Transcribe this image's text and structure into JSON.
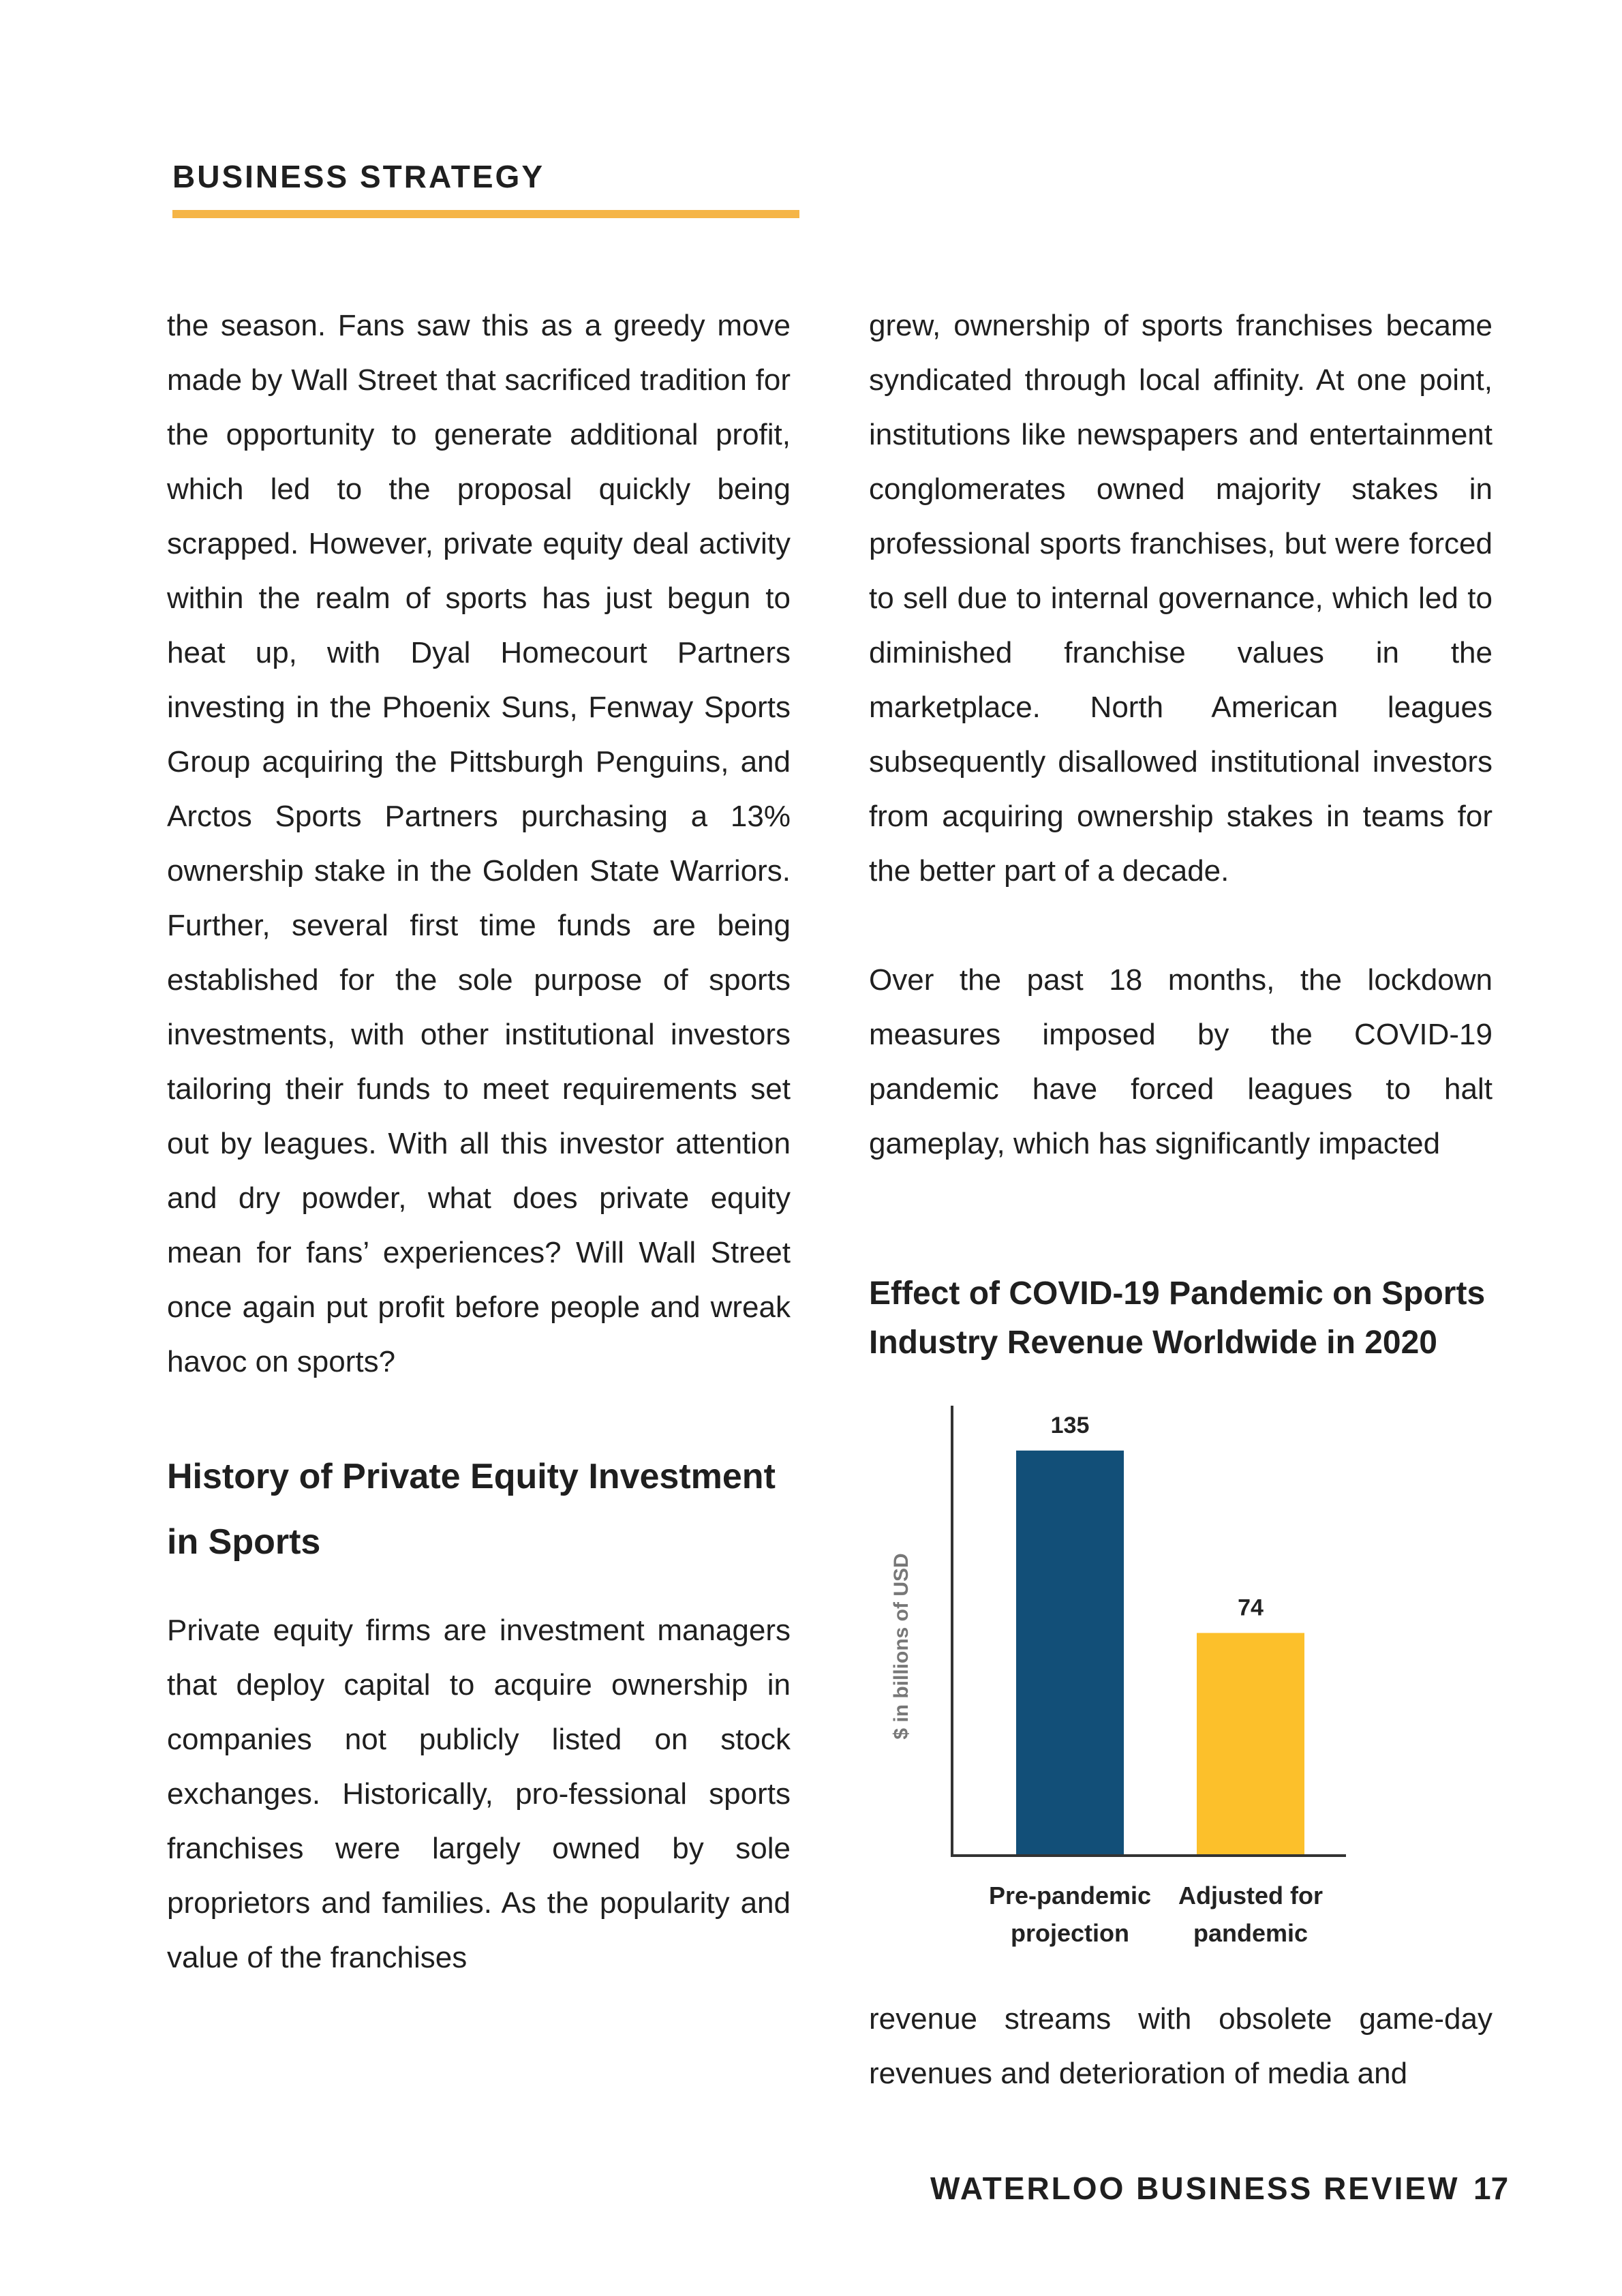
{
  "header": {
    "section": "BUSINESS STRATEGY"
  },
  "left_column": {
    "para1": "the season. Fans saw this as a greedy move made by Wall Street that sacrificed tradition for the opportunity to generate additional profit, which led to the proposal quickly being scrapped. However, private equity deal activity within the realm of sports has just begun to heat up, with Dyal Homecourt Partners investing in the Phoenix Suns, Fenway Sports Group acquiring the Pittsburgh Penguins, and Arctos Sports Partners purchasing a 13% ownership stake in the Golden State Warriors. Further, several first time funds are being established for the sole purpose of sports investments, with other institutional investors tailoring their funds to meet requirements set out by leagues. With all this investor attention and dry powder, what does private equity mean for fans’ experiences? Will Wall Street once again put profit before people and wreak havoc on sports?",
    "heading": "History of Private Equity Investment in Sports",
    "para2": "Private equity firms are investment managers that deploy capital to acquire ownership in companies not publicly listed on stock exchanges. Historically, pro-fessional sports franchises were largely owned by sole proprietors and families. As the popularity and value of the franchises"
  },
  "right_column": {
    "para1": "grew, ownership of sports franchises became syndicated through local affinity. At one point, institutions like newspapers and entertainment conglomerates owned majority stakes in professional sports franchises, but were forced to sell due to internal governance, which led to diminished franchise values in the marketplace. North American leagues subsequently disallowed institutional investors from acquiring ownership stakes in teams for the better part of a decade.",
    "para2": "Over the past 18 months, the lockdown measures imposed by the COVID-19 pandemic have forced leagues to halt gameplay, which has significantly impacted",
    "para3": "revenue streams with obsolete game-day revenues and deterioration of media and"
  },
  "chart_data": {
    "type": "bar",
    "title": "Effect of COVID-19 Pandemic on Sports Industry Revenue Worldwide in 2020",
    "ylabel": "$ in billions of USD",
    "xlabel": "",
    "categories": [
      "Pre-pandemic projection",
      "Adjusted for pandemic"
    ],
    "category_lines": [
      [
        "Pre-pandemic",
        "projection"
      ],
      [
        "Adjusted for",
        "pandemic"
      ]
    ],
    "values": [
      135,
      74
    ],
    "data_labels": [
      "135",
      "74"
    ],
    "colors": [
      "#124f78",
      "#fcc02b"
    ],
    "ylim": [
      0,
      150
    ],
    "grid": false,
    "legend": "none"
  },
  "footer": {
    "title": "WATERLOO BUSINESS REVIEW",
    "page": "17"
  }
}
